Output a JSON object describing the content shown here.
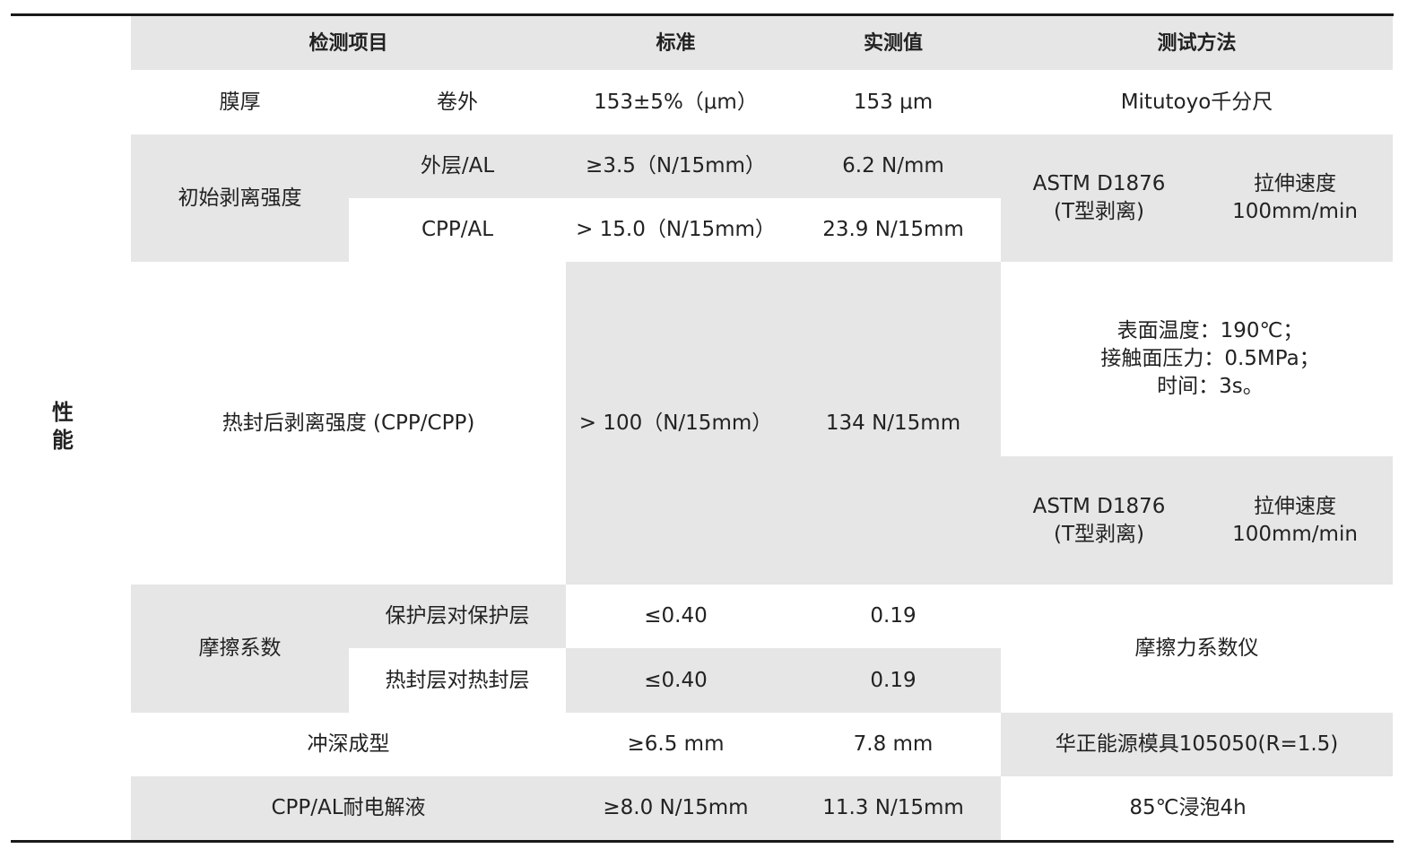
{
  "side_label": "性\n能",
  "header": {
    "item": "检测项目",
    "standard": "标准",
    "measured": "实测值",
    "method": "测试方法"
  },
  "rows": {
    "thickness": {
      "item": "膜厚",
      "sub": "卷外",
      "standard": "153±5%（μm）",
      "measured": "153 μm",
      "method": "Mitutoyo千分尺"
    },
    "initial_peel": {
      "item": "初始剥离强度",
      "outer": {
        "sub": "外层/AL",
        "standard": "≥3.5（N/15mm）",
        "measured": "6.2 N/mm"
      },
      "cpp": {
        "sub": "CPP/AL",
        "standard": "> 15.0（N/15mm）",
        "measured": "23.9 N/15mm"
      },
      "method": "ASTM D1876\n(T型剥离)",
      "speed": "拉伸速度\n100mm/min"
    },
    "heat_seal_peel": {
      "item": "热封后剥离强度 (CPP/CPP)",
      "standard": "> 100（N/15mm）",
      "measured": "134 N/15mm",
      "conditions": "表面温度：190℃；\n接触面压力：0.5MPa；\n时间：3s。",
      "method": "ASTM D1876\n(T型剥离)",
      "speed": "拉伸速度\n100mm/min"
    },
    "friction": {
      "item": "摩擦系数",
      "protect": {
        "sub": "保护层对保护层",
        "standard": "≤0.40",
        "measured": "0.19"
      },
      "seal": {
        "sub": "热封层对热封层",
        "standard": "≤0.40",
        "measured": "0.19"
      },
      "method": "摩擦力系数仪"
    },
    "deep_draw": {
      "item": "冲深成型",
      "standard": "≥6.5 mm",
      "measured": "7.8 mm",
      "method": "华正能源模具105050(R=1.5)"
    },
    "electrolyte": {
      "item": "CPP/AL耐电解液",
      "standard": "≥8.0 N/15mm",
      "measured": "11.3 N/15mm",
      "method": "85℃浸泡4h"
    }
  },
  "colors": {
    "cell_gray": "#e6e6e6",
    "rule": "#1a1a1a"
  }
}
